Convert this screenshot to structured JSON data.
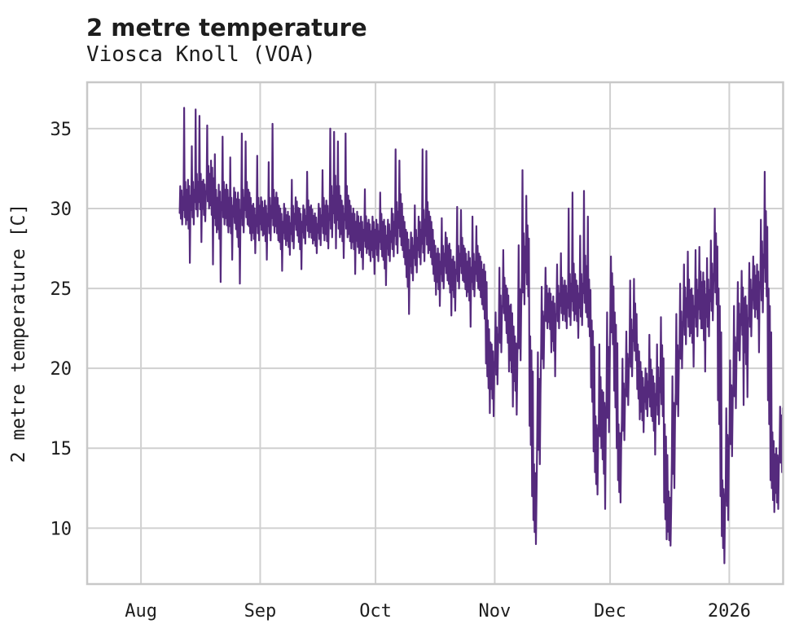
{
  "header": {
    "title": "2 metre temperature",
    "subtitle": "Viosca Knoll (VOA)"
  },
  "chart_data": {
    "type": "line",
    "title": "2 metre temperature",
    "subtitle": "Viosca Knoll (VOA)",
    "ylabel": "2 metre temperature [C]",
    "xlabel": "",
    "legend": null,
    "grid": true,
    "background": "#ffffff",
    "line_color": "#552a7d",
    "grid_color": "#d0d0d0",
    "spine_color": "#c8c8c8",
    "text_color": "#1d1d1d",
    "x_axis": {
      "unit": "days from left edge of plot (mid-July 2025 through mid-January 2026)",
      "domain": [
        0,
        181
      ],
      "ticks": [
        {
          "label": "Aug",
          "d": 14
        },
        {
          "label": "Sep",
          "d": 45
        },
        {
          "label": "Oct",
          "d": 75
        },
        {
          "label": "Nov",
          "d": 106
        },
        {
          "label": "Dec",
          "d": 136
        },
        {
          "label": "2026",
          "d": 167
        }
      ]
    },
    "y_axis": {
      "ticks": [
        10,
        15,
        20,
        25,
        30,
        35
      ],
      "lim": [
        6.5,
        37.9
      ]
    },
    "daily_series": {
      "note": "Noisy temperature trace encoded per day: d = day offset on x-axis, m = daily mean [C], a = half-amplitude of intraday oscillation, hi/lo = extreme spike/dip value that day (null if none). Data runs from ~Aug 11 (d=24) to ~Jan 14 (d=180).",
      "columns": [
        "d",
        "m",
        "a",
        "hi",
        "lo"
      ],
      "rows": [
        [
          24,
          30.2,
          1.2,
          null,
          null
        ],
        [
          25,
          30.5,
          1.5,
          36.3,
          null
        ],
        [
          26,
          30.0,
          1.8,
          null,
          26.6
        ],
        [
          27,
          30.5,
          1.5,
          33.9,
          null
        ],
        [
          28,
          31.0,
          1.5,
          36.2,
          null
        ],
        [
          29,
          31.0,
          1.5,
          35.8,
          27.9
        ],
        [
          30,
          30.5,
          1.3,
          null,
          null
        ],
        [
          31,
          31.5,
          1.5,
          35.2,
          null
        ],
        [
          32,
          31.0,
          2.0,
          null,
          26.5
        ],
        [
          33,
          30.0,
          1.5,
          33.4,
          null
        ],
        [
          34,
          29.5,
          2.0,
          null,
          25.4
        ],
        [
          35,
          30.5,
          1.5,
          34.5,
          null
        ],
        [
          36,
          30.0,
          1.5,
          null,
          null
        ],
        [
          37,
          29.5,
          1.5,
          33.2,
          26.8
        ],
        [
          38,
          30.0,
          1.3,
          null,
          null
        ],
        [
          39,
          29.0,
          2.0,
          null,
          25.3
        ],
        [
          40,
          30.0,
          1.5,
          34.7,
          null
        ],
        [
          41,
          30.5,
          1.5,
          34.2,
          null
        ],
        [
          42,
          29.5,
          1.5,
          null,
          null
        ],
        [
          43,
          29.0,
          1.3,
          null,
          27.2
        ],
        [
          44,
          29.5,
          1.5,
          33.3,
          null
        ],
        [
          45,
          29.5,
          1.2,
          null,
          null
        ],
        [
          46,
          29.0,
          1.5,
          null,
          26.8
        ],
        [
          47,
          29.5,
          1.5,
          32.9,
          null
        ],
        [
          48,
          30.0,
          1.5,
          35.3,
          null
        ],
        [
          49,
          29.5,
          1.5,
          null,
          null
        ],
        [
          50,
          28.5,
          1.5,
          null,
          26.1
        ],
        [
          51,
          29.0,
          1.3,
          null,
          null
        ],
        [
          52,
          28.5,
          1.3,
          null,
          27.1
        ],
        [
          53,
          29.0,
          1.5,
          31.8,
          null
        ],
        [
          54,
          29.5,
          1.2,
          null,
          null
        ],
        [
          55,
          28.5,
          1.5,
          null,
          26.2
        ],
        [
          56,
          29.0,
          1.2,
          null,
          null
        ],
        [
          57,
          29.5,
          1.3,
          32.3,
          null
        ],
        [
          58,
          29.0,
          1.2,
          null,
          null
        ],
        [
          59,
          28.5,
          1.2,
          null,
          27.2
        ],
        [
          60,
          29.0,
          1.3,
          null,
          null
        ],
        [
          61,
          29.5,
          1.5,
          32.4,
          null
        ],
        [
          62,
          29.0,
          1.5,
          null,
          null
        ],
        [
          63,
          30.0,
          1.8,
          35.0,
          null
        ],
        [
          64,
          30.5,
          2.0,
          34.8,
          27.5
        ],
        [
          65,
          30.0,
          1.8,
          34.2,
          null
        ],
        [
          66,
          29.0,
          1.5,
          null,
          26.9
        ],
        [
          67,
          30.0,
          1.8,
          34.7,
          null
        ],
        [
          68,
          29.0,
          1.5,
          null,
          null
        ],
        [
          69,
          28.5,
          1.5,
          null,
          25.9
        ],
        [
          70,
          28.5,
          1.3,
          null,
          null
        ],
        [
          71,
          28.0,
          1.5,
          null,
          26.2
        ],
        [
          72,
          28.5,
          1.3,
          31.2,
          null
        ],
        [
          73,
          28.0,
          1.3,
          null,
          null
        ],
        [
          74,
          28.0,
          1.5,
          null,
          25.9
        ],
        [
          75,
          28.0,
          1.3,
          null,
          null
        ],
        [
          76,
          28.5,
          1.5,
          31.0,
          null
        ],
        [
          77,
          27.5,
          1.8,
          null,
          25.2
        ],
        [
          78,
          28.0,
          1.3,
          null,
          null
        ],
        [
          79,
          28.5,
          1.5,
          null,
          null
        ],
        [
          80,
          29.0,
          1.8,
          33.7,
          null
        ],
        [
          81,
          29.5,
          1.8,
          33.0,
          null
        ],
        [
          82,
          28.0,
          1.5,
          null,
          null
        ],
        [
          83,
          26.5,
          2.0,
          null,
          23.4
        ],
        [
          84,
          27.0,
          1.5,
          null,
          null
        ],
        [
          85,
          27.5,
          1.5,
          30.2,
          null
        ],
        [
          86,
          28.0,
          1.5,
          null,
          null
        ],
        [
          87,
          28.5,
          1.8,
          33.7,
          null
        ],
        [
          88,
          29.0,
          1.8,
          33.6,
          null
        ],
        [
          89,
          28.0,
          1.5,
          null,
          null
        ],
        [
          90,
          26.5,
          1.5,
          null,
          24.6
        ],
        [
          91,
          26.0,
          1.5,
          null,
          23.9
        ],
        [
          92,
          26.5,
          1.5,
          29.4,
          null
        ],
        [
          93,
          27.0,
          1.5,
          null,
          null
        ],
        [
          94,
          26.0,
          1.8,
          null,
          23.3
        ],
        [
          95,
          25.5,
          1.5,
          null,
          23.6
        ],
        [
          96,
          26.5,
          1.5,
          30.1,
          null
        ],
        [
          97,
          27.0,
          1.5,
          29.9,
          null
        ],
        [
          98,
          26.0,
          1.5,
          null,
          null
        ],
        [
          99,
          25.5,
          1.8,
          null,
          22.6
        ],
        [
          100,
          26.0,
          1.5,
          29.5,
          null
        ],
        [
          101,
          26.5,
          1.5,
          28.9,
          null
        ],
        [
          102,
          25.5,
          1.5,
          null,
          null
        ],
        [
          103,
          24.5,
          2.0,
          null,
          20.3
        ],
        [
          104,
          20.5,
          2.5,
          null,
          17.2
        ],
        [
          105,
          19.5,
          2.0,
          null,
          17.0
        ],
        [
          106,
          21.0,
          2.0,
          23.5,
          null
        ],
        [
          107,
          23.0,
          2.0,
          26.3,
          null
        ],
        [
          108,
          24.5,
          1.5,
          27.4,
          null
        ],
        [
          109,
          23.0,
          2.0,
          null,
          19.8
        ],
        [
          110,
          21.5,
          2.5,
          null,
          17.6
        ],
        [
          111,
          20.0,
          2.0,
          null,
          17.1
        ],
        [
          112,
          23.0,
          2.5,
          27.7,
          null
        ],
        [
          113,
          26.5,
          2.5,
          32.4,
          null
        ],
        [
          114,
          27.0,
          2.5,
          30.8,
          null
        ],
        [
          115,
          18.0,
          4.0,
          null,
          12.0
        ],
        [
          116,
          11.5,
          2.5,
          null,
          9.0
        ],
        [
          117,
          17.0,
          3.0,
          21.0,
          null
        ],
        [
          118,
          22.0,
          2.0,
          25.1,
          null
        ],
        [
          119,
          24.0,
          1.5,
          26.3,
          null
        ],
        [
          120,
          23.5,
          1.5,
          null,
          21.0
        ],
        [
          121,
          22.5,
          2.0,
          null,
          19.5
        ],
        [
          122,
          24.0,
          1.5,
          26.5,
          null
        ],
        [
          123,
          24.5,
          1.5,
          27.2,
          null
        ],
        [
          124,
          24.0,
          1.5,
          null,
          null
        ],
        [
          125,
          24.5,
          1.8,
          30.0,
          null
        ],
        [
          126,
          25.0,
          2.0,
          31.0,
          null
        ],
        [
          127,
          24.0,
          1.5,
          null,
          21.9
        ],
        [
          128,
          24.5,
          1.8,
          28.3,
          null
        ],
        [
          129,
          25.5,
          2.0,
          31.1,
          null
        ],
        [
          130,
          24.0,
          2.0,
          29.5,
          null
        ],
        [
          131,
          20.0,
          3.0,
          null,
          14.8
        ],
        [
          132,
          14.5,
          2.5,
          null,
          12.1
        ],
        [
          133,
          17.5,
          2.5,
          21.5,
          null
        ],
        [
          134,
          15.5,
          3.0,
          null,
          11.2
        ],
        [
          135,
          19.0,
          3.0,
          23.5,
          null
        ],
        [
          136,
          24.0,
          2.5,
          27.0,
          null
        ],
        [
          137,
          20.0,
          3.5,
          null,
          15.0
        ],
        [
          138,
          14.0,
          2.5,
          null,
          11.6
        ],
        [
          139,
          17.5,
          2.0,
          20.6,
          null
        ],
        [
          140,
          19.5,
          1.8,
          22.3,
          null
        ],
        [
          141,
          21.5,
          2.0,
          25.5,
          null
        ],
        [
          142,
          22.5,
          2.0,
          25.6,
          null
        ],
        [
          143,
          19.5,
          2.0,
          null,
          16.8
        ],
        [
          144,
          18.0,
          1.8,
          null,
          16.0
        ],
        [
          145,
          18.5,
          1.5,
          null,
          null
        ],
        [
          146,
          19.0,
          2.0,
          22.1,
          null
        ],
        [
          147,
          17.5,
          2.0,
          null,
          14.6
        ],
        [
          148,
          18.5,
          2.0,
          21.5,
          null
        ],
        [
          149,
          19.5,
          2.5,
          23.2,
          null
        ],
        [
          150,
          13.0,
          3.5,
          null,
          9.3
        ],
        [
          151,
          10.5,
          1.8,
          null,
          8.9
        ],
        [
          152,
          15.5,
          3.0,
          19.5,
          null
        ],
        [
          153,
          19.5,
          2.5,
          23.4,
          null
        ],
        [
          154,
          22.0,
          2.0,
          25.3,
          null
        ],
        [
          155,
          23.5,
          2.0,
          26.5,
          null
        ],
        [
          156,
          24.0,
          2.0,
          27.3,
          null
        ],
        [
          157,
          23.0,
          2.0,
          null,
          20.1
        ],
        [
          158,
          24.0,
          2.0,
          27.4,
          null
        ],
        [
          159,
          24.5,
          2.0,
          27.6,
          null
        ],
        [
          160,
          23.5,
          2.5,
          null,
          19.8
        ],
        [
          161,
          24.0,
          2.0,
          26.9,
          null
        ],
        [
          162,
          25.0,
          2.0,
          28.0,
          null
        ],
        [
          163,
          26.5,
          2.5,
          30.0,
          null
        ],
        [
          164,
          20.0,
          5.0,
          null,
          12.0
        ],
        [
          165,
          10.5,
          2.5,
          null,
          7.8
        ],
        [
          166,
          13.5,
          3.0,
          17.5,
          null
        ],
        [
          167,
          17.0,
          2.5,
          20.5,
          null
        ],
        [
          168,
          20.0,
          2.5,
          23.9,
          null
        ],
        [
          169,
          22.5,
          2.0,
          25.4,
          null
        ],
        [
          170,
          23.5,
          2.0,
          26.1,
          17.7
        ],
        [
          171,
          22.0,
          2.5,
          null,
          18.2
        ],
        [
          172,
          24.0,
          2.0,
          26.6,
          null
        ],
        [
          173,
          25.0,
          1.8,
          27.0,
          null
        ],
        [
          174,
          24.5,
          2.0,
          null,
          21.0
        ],
        [
          175,
          26.0,
          2.5,
          29.3,
          null
        ],
        [
          176,
          27.5,
          3.0,
          32.3,
          null
        ],
        [
          177,
          20.0,
          5.0,
          null,
          13.0
        ],
        [
          178,
          13.5,
          2.5,
          null,
          11.0
        ],
        [
          179,
          13.0,
          2.0,
          null,
          11.2
        ],
        [
          180,
          15.5,
          2.0,
          17.6,
          null
        ]
      ]
    }
  }
}
